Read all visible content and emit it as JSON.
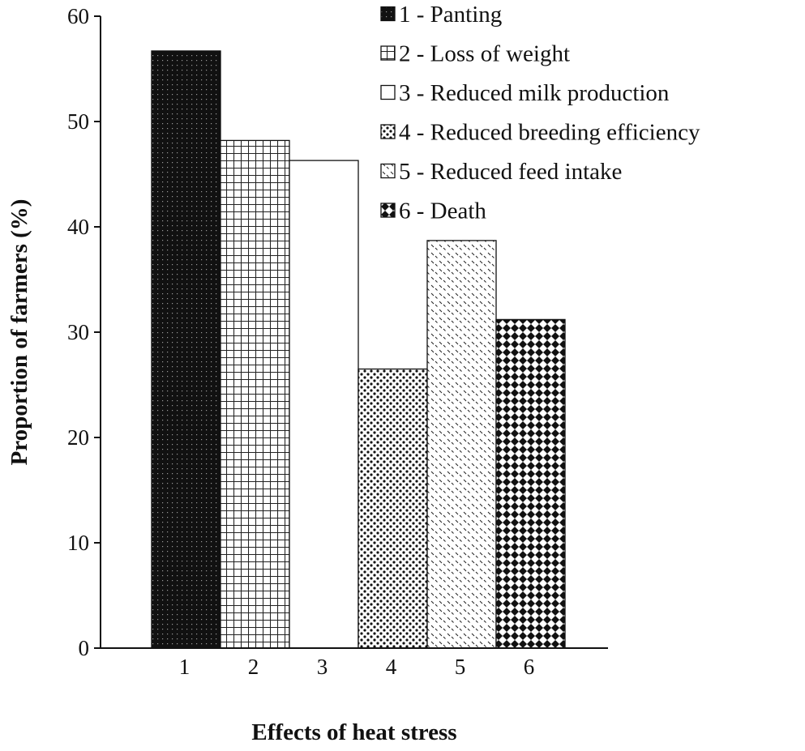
{
  "chart_data": {
    "type": "bar",
    "title": "",
    "xlabel": "Effects of heat stress",
    "ylabel": "Proportion of farmers (%)",
    "ylim": [
      0,
      60
    ],
    "yticks": [
      "0",
      "10",
      "20",
      "30",
      "40",
      "50",
      "60"
    ],
    "categories": [
      "1",
      "2",
      "3",
      "4",
      "5",
      "6"
    ],
    "values": [
      56.7,
      48.2,
      46.3,
      26.5,
      38.7,
      31.2
    ],
    "legend": [
      "1 - Panting",
      "2 - Loss of weight",
      "3 - Reduced milk production",
      "4 - Reduced breeding efficiency",
      "5 - Reduced feed intake",
      "6 - Death"
    ],
    "legend_position": "top-right",
    "patterns": [
      "dark-dotted",
      "grid",
      "plain",
      "speckled",
      "diagonal-dashes",
      "diamond-checker"
    ],
    "colors": {
      "ink": "#111111",
      "fill": "#ffffff"
    }
  }
}
